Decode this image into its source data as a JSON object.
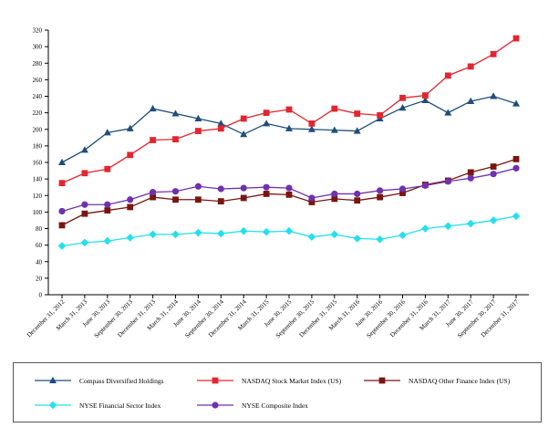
{
  "chart_data": {
    "type": "line",
    "title": "",
    "xlabel": "",
    "ylabel": "",
    "ylim": [
      0,
      320
    ],
    "yticks": [
      "0",
      "20",
      "40",
      "60",
      "80",
      "100",
      "120",
      "140",
      "160",
      "180",
      "200",
      "220",
      "240",
      "260",
      "280",
      "300",
      "320"
    ],
    "grid": false,
    "legend_position": "bottom",
    "categories": [
      "December 31, 2012",
      "March 31, 2013",
      "June 30, 2013",
      "September 30, 2013",
      "December 31, 2013",
      "March 31, 2014",
      "June 30, 2014",
      "September 30, 2014",
      "December 31, 2014",
      "March 31, 2015",
      "June 30, 2015",
      "September 30, 2015",
      "December 31, 2015",
      "March 31, 2016",
      "June 30, 2016",
      "September 30, 2016",
      "December 31, 2016",
      "March 31, 2017",
      "June 30, 2017",
      "September 30, 2017",
      "December 31, 2017"
    ],
    "series": [
      {
        "name": "Compass Diversified Holdings",
        "color": "#1f4e79",
        "marker": "triangle",
        "values": [
          160,
          175,
          196,
          201,
          225,
          219,
          213,
          207,
          194,
          207,
          201,
          200,
          199,
          198,
          213,
          226,
          235,
          220,
          234,
          240,
          231
        ]
      },
      {
        "name": "NASDAQ Stock Market Index (US)",
        "color": "#e2262f",
        "marker": "square",
        "values": [
          135,
          147,
          152,
          169,
          187,
          188,
          198,
          201,
          213,
          220,
          224,
          207,
          225,
          219,
          217,
          238,
          241,
          265,
          276,
          291,
          310
        ]
      },
      {
        "name": "NASDAQ Other Finance Index (US)",
        "color": "#7a1510",
        "marker": "square",
        "values": [
          84,
          98,
          102,
          106,
          118,
          115,
          115,
          113,
          117,
          122,
          121,
          112,
          116,
          114,
          118,
          123,
          133,
          138,
          148,
          155,
          164
        ]
      },
      {
        "name": "NYSE Financial Sector Index",
        "color": "#22e0ee",
        "marker": "diamond",
        "values": [
          59,
          63,
          65,
          69,
          73,
          73,
          75,
          74,
          77,
          76,
          77,
          70,
          73,
          68,
          67,
          72,
          80,
          83,
          86,
          90,
          95
        ]
      },
      {
        "name": "NYSE Composite Index",
        "color": "#7030b0",
        "marker": "circle",
        "values": [
          101,
          109,
          109,
          115,
          124,
          125,
          131,
          128,
          129,
          130,
          129,
          117,
          122,
          122,
          126,
          128,
          132,
          137,
          141,
          146,
          153
        ]
      }
    ]
  }
}
